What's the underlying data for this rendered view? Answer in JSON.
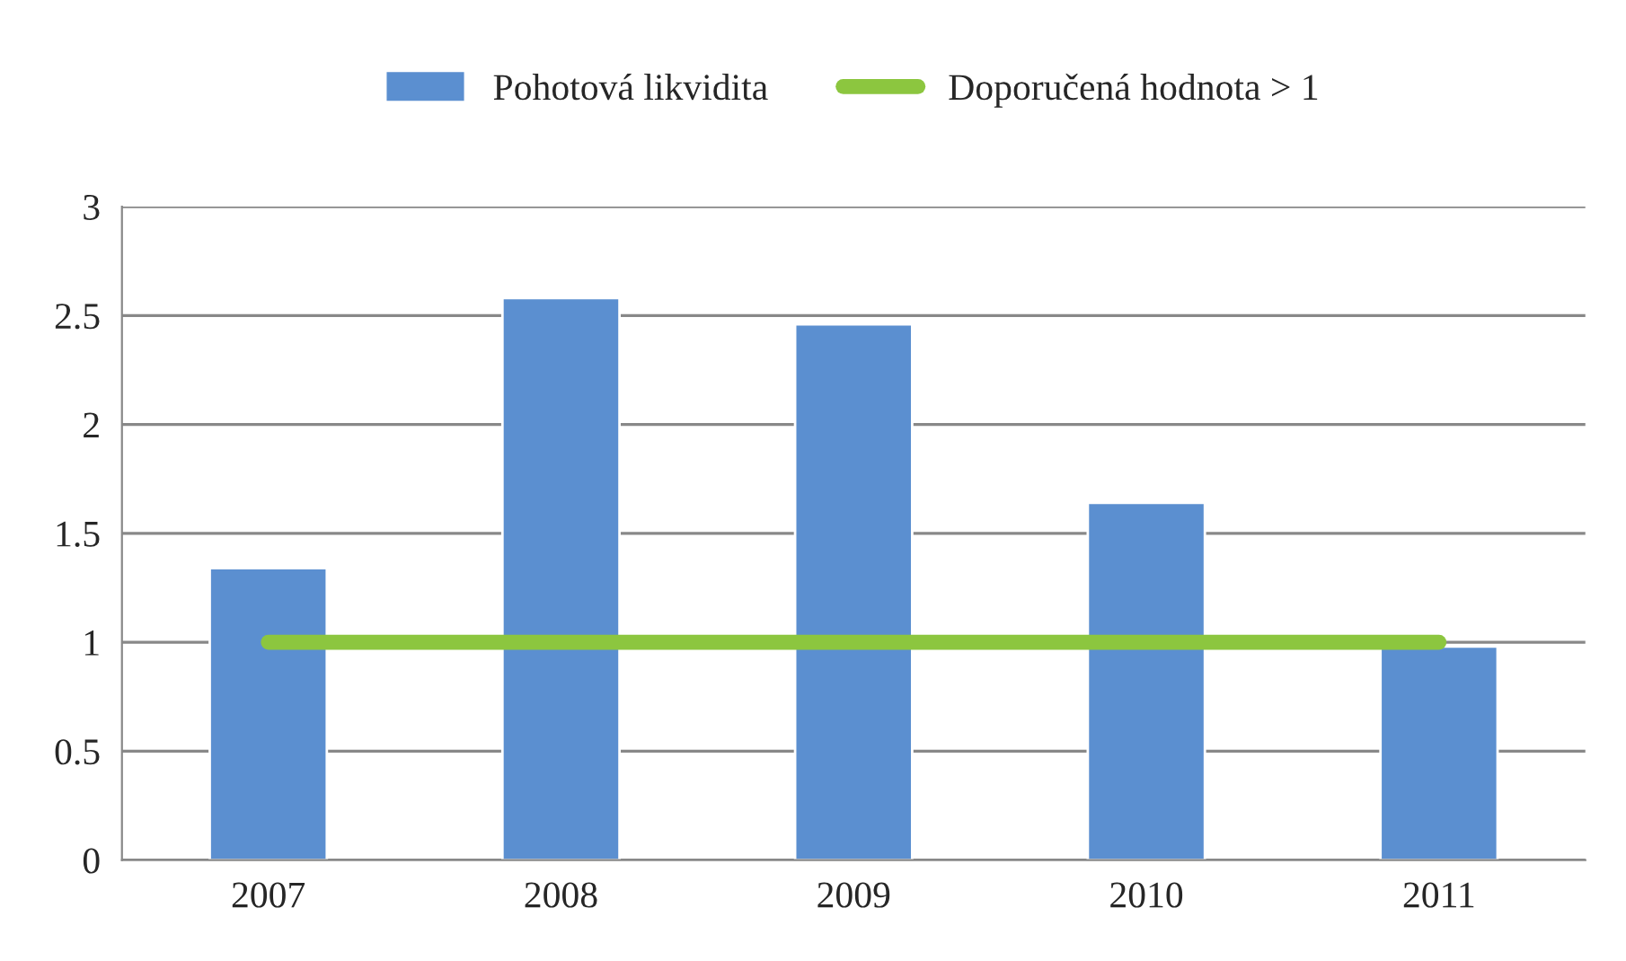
{
  "chart_data": {
    "type": "bar",
    "categories": [
      "2007",
      "2008",
      "2009",
      "2010",
      "2011"
    ],
    "series": [
      {
        "name": "Pohotová likvidita",
        "color": "#5b8fd0",
        "values": [
          1.34,
          2.58,
          2.46,
          1.64,
          0.98
        ]
      },
      {
        "name": "Doporučená hodnota > 1",
        "type": "line",
        "color": "#8cc63f",
        "values": [
          1,
          1,
          1,
          1,
          1
        ]
      }
    ],
    "ylim": [
      0,
      3
    ],
    "yticks": [
      0,
      0.5,
      1,
      1.5,
      2,
      2.5,
      3
    ],
    "grid": "y",
    "legend": "top",
    "marker": "none",
    "line_style": "solid"
  }
}
